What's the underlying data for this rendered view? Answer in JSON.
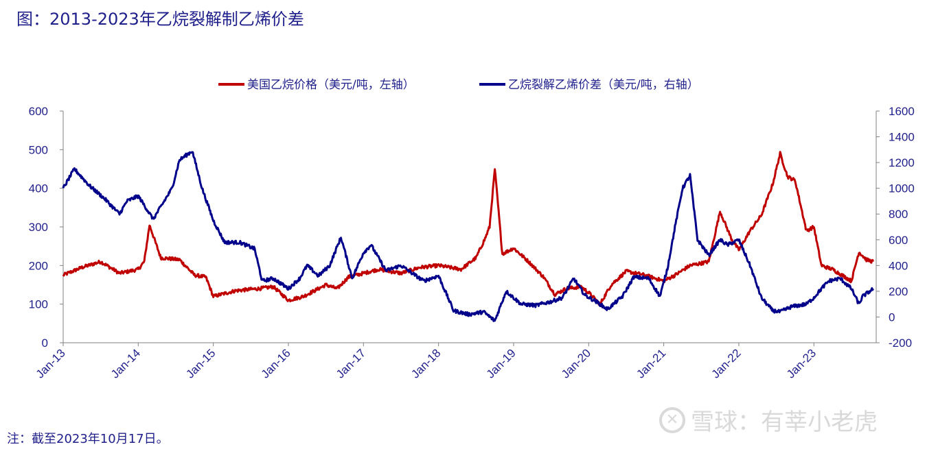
{
  "figure": {
    "title": "图：2013-2023年乙烷裂解制乙烯价差",
    "note": "注：截至2023年10月17日。",
    "watermark": "雪球：有莘小老虎"
  },
  "chart_data": {
    "type": "line",
    "title": "",
    "xlabel": "",
    "ylabel": "",
    "x_ticks": [
      "Jan-13",
      "Jan-14",
      "Jan-15",
      "Jan-16",
      "Jan-17",
      "Jan-18",
      "Jan-19",
      "Jan-20",
      "Jan-21",
      "Jan-22",
      "Jan-23"
    ],
    "x_range": [
      "2013-01",
      "2023-10"
    ],
    "y_left_range": [
      0,
      600
    ],
    "y_left_ticks": [
      0,
      100,
      200,
      300,
      400,
      500,
      600
    ],
    "y_right_range": [
      -200,
      1600
    ],
    "y_right_ticks": [
      -200,
      0,
      200,
      400,
      600,
      800,
      1000,
      1200,
      1400,
      1600
    ],
    "grid": false,
    "legend_position": "top-center",
    "series": [
      {
        "name": "美国乙烷价格（美元/吨，左轴）",
        "axis": "left",
        "color": "#c00000",
        "x": [
          2013.0,
          2013.25,
          2013.5,
          2013.75,
          2014.0,
          2014.08,
          2014.15,
          2014.3,
          2014.55,
          2014.75,
          2014.9,
          2015.0,
          2015.3,
          2015.6,
          2015.8,
          2016.0,
          2016.2,
          2016.5,
          2016.65,
          2016.8,
          2017.0,
          2017.2,
          2017.5,
          2017.75,
          2018.0,
          2018.3,
          2018.5,
          2018.62,
          2018.68,
          2018.75,
          2018.85,
          2019.0,
          2019.2,
          2019.4,
          2019.55,
          2019.7,
          2019.9,
          2020.0,
          2020.15,
          2020.3,
          2020.5,
          2020.75,
          2021.0,
          2021.15,
          2021.35,
          2021.6,
          2021.75,
          2021.9,
          2022.0,
          2022.15,
          2022.3,
          2022.45,
          2022.55,
          2022.65,
          2022.75,
          2022.9,
          2023.0,
          2023.1,
          2023.25,
          2023.5,
          2023.6,
          2023.7,
          2023.79
        ],
        "values": [
          175,
          195,
          210,
          180,
          190,
          210,
          305,
          220,
          215,
          175,
          170,
          120,
          135,
          140,
          145,
          110,
          120,
          150,
          140,
          170,
          180,
          190,
          180,
          195,
          200,
          190,
          220,
          270,
          300,
          450,
          230,
          245,
          210,
          170,
          125,
          140,
          145,
          130,
          100,
          150,
          185,
          175,
          160,
          175,
          200,
          210,
          340,
          270,
          240,
          290,
          330,
          410,
          490,
          430,
          420,
          290,
          300,
          200,
          190,
          160,
          235,
          215,
          210
        ]
      },
      {
        "name": "乙烷裂解乙烯价差（美元/吨，右轴）",
        "axis": "right",
        "color": "#00008b",
        "x": [
          2013.0,
          2013.15,
          2013.35,
          2013.55,
          2013.75,
          2013.85,
          2014.0,
          2014.2,
          2014.45,
          2014.55,
          2014.72,
          2014.85,
          2015.0,
          2015.15,
          2015.35,
          2015.55,
          2015.65,
          2015.8,
          2016.0,
          2016.15,
          2016.25,
          2016.4,
          2016.55,
          2016.7,
          2016.85,
          2017.0,
          2017.1,
          2017.3,
          2017.5,
          2017.65,
          2017.8,
          2018.0,
          2018.2,
          2018.4,
          2018.6,
          2018.75,
          2018.9,
          2019.1,
          2019.3,
          2019.5,
          2019.65,
          2019.8,
          2019.95,
          2020.1,
          2020.25,
          2020.45,
          2020.6,
          2020.8,
          2020.95,
          2021.05,
          2021.15,
          2021.25,
          2021.35,
          2021.45,
          2021.6,
          2021.75,
          2021.85,
          2022.0,
          2022.15,
          2022.3,
          2022.45,
          2022.55,
          2022.7,
          2022.9,
          2023.0,
          2023.1,
          2023.2,
          2023.35,
          2023.5,
          2023.6,
          2023.65,
          2023.79
        ],
        "values": [
          1000,
          1150,
          1020,
          920,
          800,
          900,
          940,
          760,
          1000,
          1220,
          1290,
          1000,
          750,
          580,
          580,
          530,
          280,
          300,
          220,
          300,
          400,
          320,
          400,
          620,
          300,
          500,
          560,
          360,
          400,
          340,
          280,
          320,
          50,
          20,
          40,
          -30,
          200,
          100,
          90,
          120,
          150,
          300,
          170,
          120,
          60,
          160,
          310,
          300,
          160,
          380,
          700,
          1000,
          1100,
          600,
          480,
          600,
          560,
          600,
          400,
          150,
          50,
          40,
          80,
          100,
          150,
          220,
          280,
          300,
          220,
          100,
          160,
          220
        ]
      }
    ]
  }
}
